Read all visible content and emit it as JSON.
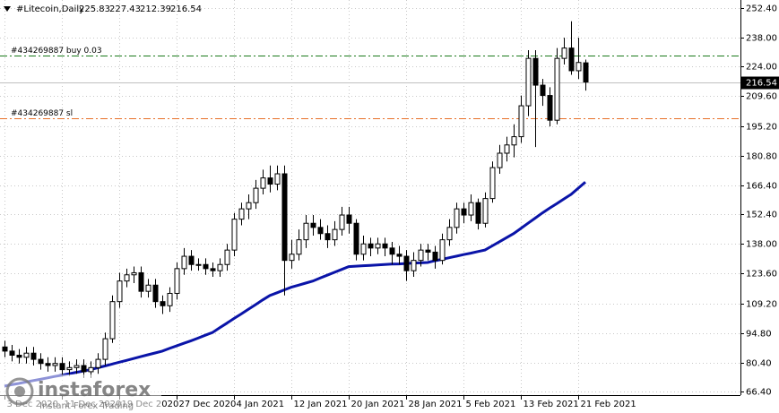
{
  "chart_data": {
    "type": "candlestick",
    "title": "#Litecoin,Daily",
    "categories": [
      "3 Dec 2020",
      null,
      null,
      null,
      null,
      null,
      null,
      null,
      "11 Dec 2020",
      null,
      null,
      null,
      null,
      null,
      null,
      null,
      "19 Dec 2020",
      null,
      null,
      null,
      null,
      null,
      null,
      null,
      "27 Dec 2020",
      null,
      null,
      null,
      null,
      null,
      null,
      null,
      "4 Jan 2021",
      null,
      null,
      null,
      null,
      null,
      null,
      null,
      "12 Jan 2021",
      null,
      null,
      null,
      null,
      null,
      null,
      null,
      "20 Jan 2021",
      null,
      null,
      null,
      null,
      null,
      null,
      null,
      "28 Jan 2021",
      null,
      null,
      null,
      null,
      null,
      null,
      null,
      "5 Feb 2021",
      null,
      null,
      null,
      null,
      null,
      null,
      null,
      "13 Feb 2021",
      null,
      null,
      null,
      null,
      null,
      null,
      null,
      "21 Feb 2021",
      null
    ],
    "open": [
      88,
      86,
      84,
      83,
      85,
      82,
      80,
      79,
      80,
      77,
      78,
      79,
      76,
      78,
      82,
      92,
      110,
      120,
      123,
      124,
      115,
      118,
      110,
      108,
      114,
      126,
      132,
      128,
      128,
      126,
      125,
      128,
      135,
      150,
      155,
      158,
      165,
      170,
      167,
      172,
      130,
      133,
      140,
      148,
      146,
      143,
      140,
      145,
      152,
      148,
      133,
      138,
      136,
      138,
      136,
      133,
      132,
      125,
      130,
      135,
      134,
      130,
      140,
      146,
      155,
      152,
      158,
      148,
      160,
      175,
      182,
      186,
      190,
      205,
      228,
      215,
      210,
      198,
      228,
      233,
      222,
      225.83
    ],
    "high": [
      91,
      89,
      87,
      88,
      88,
      85,
      83,
      83,
      83,
      81,
      82,
      82,
      81,
      85,
      95,
      113,
      124,
      126,
      127,
      127,
      121,
      121,
      113,
      117,
      129,
      136,
      135,
      131,
      131,
      129,
      131,
      138,
      153,
      158,
      162,
      169,
      174,
      176,
      176,
      176,
      140,
      145,
      152,
      152,
      150,
      147,
      149,
      156,
      156,
      150,
      142,
      141,
      141,
      141,
      139,
      137,
      135,
      134,
      138,
      138,
      137,
      143,
      150,
      158,
      158,
      162,
      160,
      163,
      178,
      186,
      190,
      196,
      210,
      232,
      232,
      218,
      214,
      233,
      238,
      246,
      238,
      227.43
    ],
    "low": [
      83,
      81,
      80,
      80,
      79,
      77,
      76,
      76,
      74,
      74,
      75,
      73,
      73,
      75,
      79,
      90,
      107,
      117,
      119,
      112,
      112,
      107,
      104,
      105,
      111,
      123,
      125,
      125,
      123,
      122,
      122,
      125,
      132,
      147,
      150,
      155,
      162,
      163,
      164,
      113,
      126,
      130,
      136,
      142,
      140,
      136,
      137,
      142,
      143,
      130,
      130,
      132,
      133,
      132,
      128,
      128,
      120,
      122,
      127,
      130,
      126,
      128,
      137,
      143,
      148,
      149,
      145,
      146,
      158,
      172,
      178,
      180,
      187,
      200,
      185,
      205,
      195,
      196,
      225,
      220,
      218,
      212.39
    ],
    "close": [
      86,
      84,
      83,
      85,
      82,
      80,
      79,
      80,
      77,
      78,
      79,
      76,
      78,
      82,
      92,
      110,
      120,
      123,
      124,
      115,
      118,
      110,
      108,
      114,
      126,
      132,
      128,
      128,
      126,
      125,
      128,
      135,
      150,
      155,
      158,
      165,
      170,
      167,
      172,
      130,
      133,
      140,
      148,
      146,
      143,
      140,
      145,
      152,
      148,
      133,
      138,
      136,
      138,
      136,
      133,
      132,
      125,
      130,
      135,
      134,
      130,
      140,
      146,
      155,
      152,
      158,
      148,
      160,
      175,
      182,
      186,
      190,
      205,
      228,
      215,
      210,
      198,
      228,
      233,
      222,
      226,
      216.54
    ],
    "up_color": "#ffffff",
    "down_color": "#000000",
    "ma": {
      "color": "#0a14a8",
      "values": [
        69,
        69.7,
        70.3,
        71,
        71.7,
        72.3,
        73,
        73.7,
        74.3,
        75,
        75.7,
        76.3,
        77,
        77.9,
        78.8,
        79.7,
        80.6,
        81.5,
        82.4,
        83.3,
        84.2,
        85.1,
        86,
        87.3,
        88.5,
        89.8,
        91,
        92.3,
        93.7,
        95,
        97.3,
        99.5,
        101.8,
        104,
        106.3,
        108.5,
        110.8,
        113,
        114.3,
        115.7,
        117,
        118,
        119,
        120,
        121.4,
        122.8,
        124.2,
        125.6,
        127,
        127.2,
        127.4,
        127.6,
        127.8,
        128,
        128.2,
        128.3,
        128.5,
        128.7,
        128.8,
        129,
        129.8,
        130.5,
        131.3,
        132,
        132.8,
        133.5,
        134.3,
        135,
        137,
        139,
        141,
        143,
        145.5,
        148,
        150.5,
        153,
        155.3,
        157.5,
        159.8,
        162,
        165,
        168
      ]
    },
    "ylim": [
      66.4,
      252.4
    ],
    "yticks": [
      {
        "value": 252.4,
        "label": "252.40"
      },
      {
        "value": 238,
        "label": "238.00"
      },
      {
        "value": 224,
        "label": "224.00"
      },
      {
        "value": 209.6,
        "label": "209.60"
      },
      {
        "value": 195.2,
        "label": "195.20"
      },
      {
        "value": 180.8,
        "label": "180.80"
      },
      {
        "value": 166.4,
        "label": "166.40"
      },
      {
        "value": 152.4,
        "label": "152.40"
      },
      {
        "value": 138,
        "label": "138.00"
      },
      {
        "value": 123.6,
        "label": "123.60"
      },
      {
        "value": 109.2,
        "label": "109.20"
      },
      {
        "value": 94.8,
        "label": "94.80"
      },
      {
        "value": 80.4,
        "label": "80.40"
      },
      {
        "value": 66.4,
        "label": "66.40"
      }
    ],
    "grid": true,
    "price_line": {
      "value": 216.54,
      "color": "#c0c0c0"
    },
    "levels": [
      {
        "label": "#434269887 buy 0.03",
        "value": 229.4,
        "color": "#1a7a1a"
      },
      {
        "label": "#434269887 sl",
        "value": 199,
        "color": "#e8702a"
      }
    ],
    "watermark": {
      "name": "instaforex",
      "tagline": "Instant Forex Trading"
    }
  }
}
